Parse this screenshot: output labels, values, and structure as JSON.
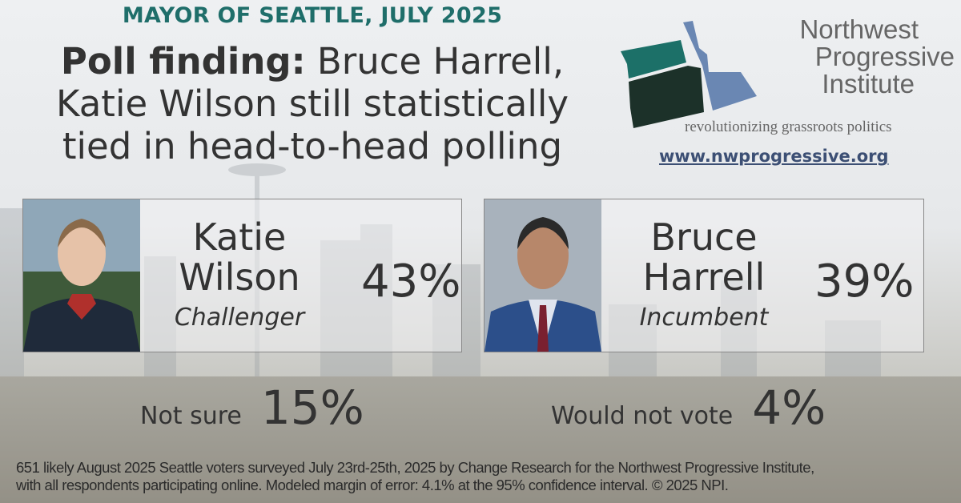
{
  "kicker": "MAYOR OF SEATTLE, JULY 2025",
  "headline": {
    "bold": "Poll finding:",
    "line1_rest": " Bruce Harrell,",
    "line2": "Katie Wilson still statistically",
    "line3": "tied in head-to-head polling"
  },
  "logo": {
    "name_lines": [
      "Northwest",
      "Progressive",
      "Institute"
    ],
    "tagline": "revolutionizing grassroots politics",
    "url": "www.nwprogressive.org",
    "colors": {
      "washington": "#1c7068",
      "oregon": "#1c3129",
      "idaho": "#6a87b3"
    }
  },
  "candidates": [
    {
      "first": "Katie",
      "last": "Wilson",
      "role": "Challenger",
      "pct": "43%"
    },
    {
      "first": "Bruce",
      "last": "Harrell",
      "role": "Incumbent",
      "pct": "39%"
    }
  ],
  "others": [
    {
      "label": "Not sure",
      "pct": "15%"
    },
    {
      "label": "Would not vote",
      "pct": "4%"
    }
  ],
  "footer": {
    "line1": "651 likely August 2025 Seattle voters surveyed July 23rd-25th, 2025 by Change Research for the Northwest Progressive Institute,",
    "line2": "with all respondents participating online. Modeled margin of error: 4.1% at the 95% confidence interval. © 2025 NPI."
  }
}
